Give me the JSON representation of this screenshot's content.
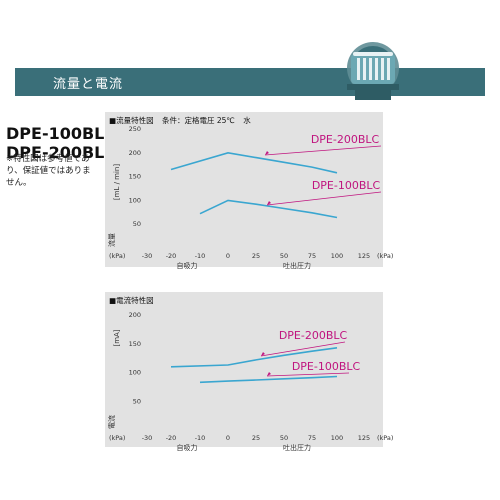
{
  "header": {
    "title": "流量と電流"
  },
  "models": [
    "DPE-100BLC",
    "DPE-200BLC"
  ],
  "note": "※特性図は参考値であり、保証値ではありません。",
  "colors": {
    "banner": "#3a6f79",
    "panel": "#e2e2e2",
    "line": "#3aa6d0",
    "label": "#c0157f"
  },
  "icon": "pump-motor-icon",
  "chart_data": [
    {
      "type": "line",
      "title_parts": [
        "■流量特性図",
        "条件：定格電圧 25℃",
        "水"
      ],
      "ylabel": "流量",
      "yunit": "[mL / min]",
      "x_unit_left": "(kPa)",
      "x_unit_right": "(kPa)",
      "x_caption_left": "自吸力",
      "x_caption_right": "吐出圧力",
      "xlim": [
        -30,
        125
      ],
      "ylim": [
        0,
        250
      ],
      "xticks": [
        "-30",
        "-20",
        "-10",
        "0",
        "25",
        "50",
        "75",
        "100",
        "125"
      ],
      "yticks": [
        "50",
        "100",
        "150",
        "200",
        "250"
      ],
      "grid": false,
      "series": [
        {
          "name": "DPE-200BLC",
          "x": [
            -20,
            0,
            25,
            50,
            75,
            100
          ],
          "y": [
            165,
            200,
            190,
            180,
            170,
            158
          ]
        },
        {
          "name": "DPE-100BLC",
          "x": [
            -10,
            0,
            25,
            50,
            75,
            100
          ],
          "y": [
            72,
            100,
            92,
            83,
            74,
            64
          ]
        }
      ]
    },
    {
      "type": "line",
      "title_parts": [
        "■電流特性図"
      ],
      "ylabel": "電流",
      "yunit": "[mA]",
      "x_unit_left": "(kPa)",
      "x_unit_right": "(kPa)",
      "x_caption_left": "自吸力",
      "x_caption_right": "吐出圧力",
      "xlim": [
        -30,
        125
      ],
      "ylim": [
        0,
        200
      ],
      "xticks": [
        "-30",
        "-20",
        "-10",
        "0",
        "25",
        "50",
        "75",
        "100",
        "125"
      ],
      "yticks": [
        "50",
        "100",
        "150",
        "200"
      ],
      "grid": false,
      "series": [
        {
          "name": "DPE-200BLC",
          "x": [
            -20,
            0,
            25,
            50,
            75,
            100
          ],
          "y": [
            110,
            113,
            122,
            130,
            137,
            143
          ]
        },
        {
          "name": "DPE-100BLC",
          "x": [
            -10,
            0,
            25,
            50,
            75,
            100
          ],
          "y": [
            83,
            85,
            87,
            89,
            91,
            93
          ]
        }
      ]
    }
  ]
}
